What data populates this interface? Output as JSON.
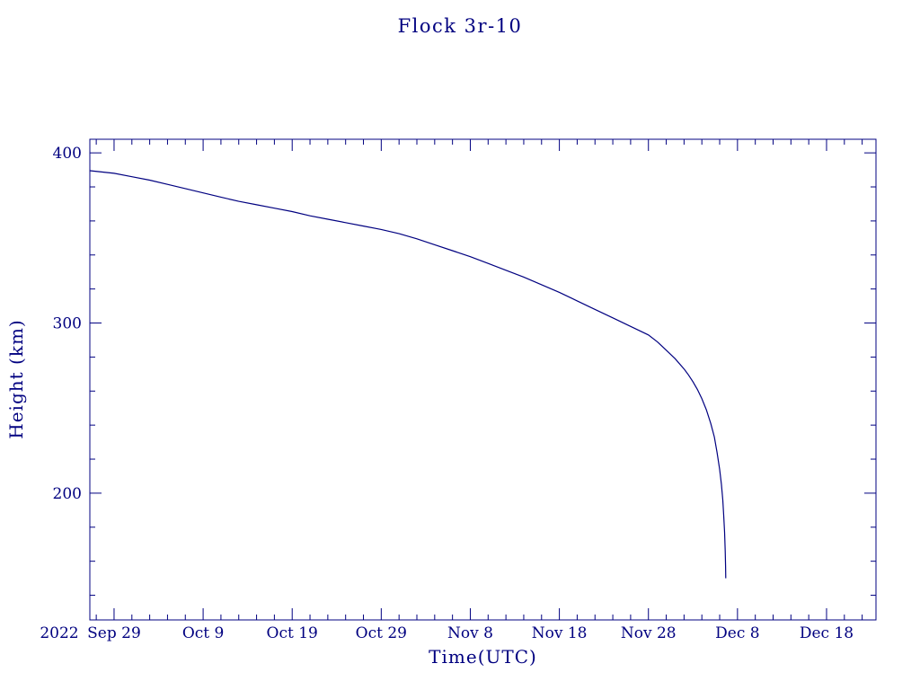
{
  "chart_data": {
    "type": "line",
    "title": "Flock 3r-10",
    "xlabel": "Time(UTC)",
    "ylabel": "Height (km)",
    "line_color": "#000080",
    "background_color": "#ffffff",
    "grid": false,
    "legend": false,
    "x_axis": {
      "year_label": "2022",
      "start_day": -2.72,
      "end_day": 85.55,
      "tick_days": [
        0,
        10,
        20,
        30,
        40,
        50,
        60,
        70,
        80
      ],
      "tick_labels": [
        "Sep 29",
        "Oct 9",
        "Oct 19",
        "Oct 29",
        "Nov 8",
        "Nov 18",
        "Nov 28",
        "Dec 8",
        "Dec 18"
      ],
      "minor_tick_step_days": 2
    },
    "y_axis": {
      "min": 125.5,
      "max": 408,
      "tick_values": [
        200,
        300,
        400
      ],
      "tick_labels": [
        "200",
        "300",
        "400"
      ],
      "minor_tick_step": 20
    },
    "series": [
      {
        "name": "Flock 3r-10 height",
        "points": [
          [
            -2.7,
            389.5
          ],
          [
            0,
            388
          ],
          [
            2,
            386
          ],
          [
            4,
            384
          ],
          [
            6,
            381.5
          ],
          [
            8,
            379
          ],
          [
            10,
            376.5
          ],
          [
            12,
            374
          ],
          [
            14,
            371.5
          ],
          [
            16,
            369.5
          ],
          [
            18,
            367.5
          ],
          [
            20,
            365.5
          ],
          [
            22,
            363
          ],
          [
            24,
            361
          ],
          [
            26,
            359
          ],
          [
            28,
            357
          ],
          [
            30,
            355
          ],
          [
            32,
            352.5
          ],
          [
            34,
            349.5
          ],
          [
            36,
            346
          ],
          [
            38,
            342.5
          ],
          [
            40,
            339
          ],
          [
            42,
            335
          ],
          [
            44,
            331
          ],
          [
            46,
            327
          ],
          [
            48,
            322.5
          ],
          [
            50,
            318
          ],
          [
            52,
            313
          ],
          [
            54,
            308
          ],
          [
            56,
            303
          ],
          [
            58,
            298
          ],
          [
            60,
            293
          ],
          [
            61,
            289
          ],
          [
            62,
            284
          ],
          [
            63,
            279
          ],
          [
            64,
            273
          ],
          [
            64.5,
            269.5
          ],
          [
            65,
            265.5
          ],
          [
            65.5,
            261
          ],
          [
            66,
            255.5
          ],
          [
            66.5,
            249
          ],
          [
            67,
            241
          ],
          [
            67.4,
            233
          ],
          [
            67.7,
            224
          ],
          [
            68,
            214
          ],
          [
            68.2,
            205
          ],
          [
            68.35,
            196
          ],
          [
            68.45,
            187
          ],
          [
            68.55,
            177
          ],
          [
            68.62,
            166
          ],
          [
            68.66,
            157
          ],
          [
            68.68,
            150
          ]
        ]
      }
    ]
  }
}
